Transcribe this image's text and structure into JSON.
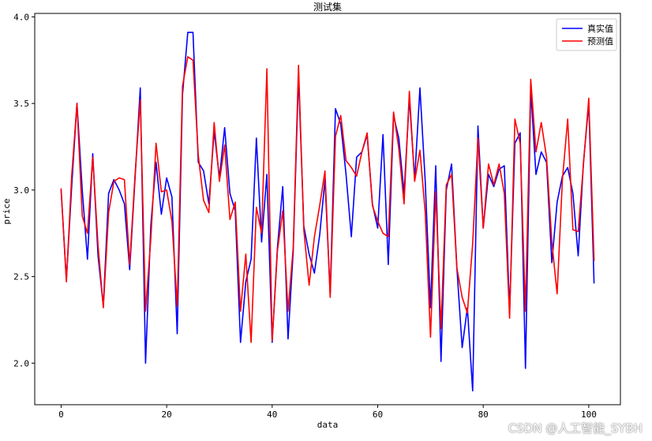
{
  "chart_data": {
    "type": "line",
    "title": "测试集",
    "xlabel": "data",
    "ylabel": "price",
    "xlim": [
      -5,
      106
    ],
    "ylim": [
      1.76,
      4.02
    ],
    "xticks": [
      0,
      20,
      40,
      60,
      80,
      100
    ],
    "yticks": [
      2.0,
      2.5,
      3.0,
      3.5,
      4.0
    ],
    "ytick_labels": [
      "2.0",
      "2.5",
      "3.0",
      "3.5",
      "4.0"
    ],
    "grid": false,
    "legend_position": "top-right",
    "x": [
      0,
      1,
      2,
      3,
      4,
      5,
      6,
      7,
      8,
      9,
      10,
      11,
      12,
      13,
      14,
      15,
      16,
      17,
      18,
      19,
      20,
      21,
      22,
      23,
      24,
      25,
      26,
      27,
      28,
      29,
      30,
      31,
      32,
      33,
      34,
      35,
      36,
      37,
      38,
      39,
      40,
      41,
      42,
      43,
      44,
      45,
      46,
      47,
      48,
      49,
      50,
      51,
      52,
      53,
      54,
      55,
      56,
      57,
      58,
      59,
      60,
      61,
      62,
      63,
      64,
      65,
      66,
      67,
      68,
      69,
      70,
      71,
      72,
      73,
      74,
      75,
      76,
      77,
      78,
      79,
      80,
      81,
      82,
      83,
      84,
      85,
      86,
      87,
      88,
      89,
      90,
      91,
      92,
      93,
      94,
      95,
      96,
      97,
      98,
      99,
      100,
      101
    ],
    "series": [
      {
        "name": "真实值",
        "color": "#0000ff",
        "values": [
          3.0,
          2.48,
          3.02,
          3.5,
          3.0,
          2.6,
          3.21,
          2.62,
          2.33,
          2.98,
          3.06,
          3.0,
          2.92,
          2.54,
          3.06,
          3.59,
          2.0,
          2.8,
          3.16,
          2.86,
          3.07,
          2.96,
          2.17,
          3.55,
          3.91,
          3.91,
          3.16,
          3.11,
          2.92,
          3.34,
          3.07,
          3.36,
          2.98,
          2.88,
          2.12,
          2.47,
          2.6,
          3.3,
          2.7,
          3.09,
          2.12,
          2.67,
          3.02,
          2.14,
          2.65,
          3.66,
          2.79,
          2.63,
          2.52,
          2.74,
          3.06,
          2.4,
          3.47,
          3.38,
          3.09,
          2.73,
          3.19,
          3.22,
          3.32,
          2.92,
          2.78,
          3.32,
          2.57,
          3.43,
          3.3,
          2.98,
          3.53,
          3.06,
          3.59,
          3.05,
          2.32,
          3.14,
          2.01,
          3.0,
          3.15,
          2.55,
          2.09,
          2.32,
          1.84,
          3.37,
          2.78,
          3.09,
          3.02,
          3.12,
          3.14,
          2.3,
          3.27,
          3.33,
          1.97,
          3.58,
          3.09,
          3.22,
          3.16,
          2.58,
          2.93,
          3.08,
          3.13,
          2.98,
          2.62,
          3.16,
          3.5,
          2.46
        ]
      },
      {
        "name": "预测值",
        "color": "#ff0000",
        "values": [
          3.01,
          2.47,
          3.08,
          3.5,
          2.85,
          2.75,
          3.19,
          2.68,
          2.32,
          2.87,
          3.05,
          3.07,
          3.06,
          2.57,
          3.08,
          3.52,
          2.3,
          2.72,
          3.27,
          2.99,
          3.0,
          2.82,
          2.33,
          3.6,
          3.77,
          3.75,
          3.2,
          2.94,
          2.87,
          3.39,
          3.05,
          3.26,
          2.83,
          2.93,
          2.3,
          2.63,
          2.12,
          2.9,
          2.75,
          3.7,
          2.13,
          2.65,
          2.88,
          2.3,
          2.67,
          3.72,
          2.77,
          2.45,
          2.73,
          2.91,
          3.11,
          2.38,
          3.31,
          3.43,
          3.17,
          3.13,
          3.08,
          3.22,
          3.33,
          2.91,
          2.82,
          2.75,
          2.73,
          3.45,
          3.24,
          2.92,
          3.57,
          3.05,
          3.23,
          2.87,
          2.15,
          2.99,
          2.2,
          3.03,
          3.09,
          2.55,
          2.38,
          2.29,
          2.69,
          3.3,
          2.78,
          3.15,
          3.03,
          3.15,
          2.98,
          2.26,
          3.41,
          3.27,
          2.3,
          3.64,
          3.22,
          3.39,
          3.19,
          2.7,
          2.4,
          3.06,
          3.41,
          2.77,
          2.76,
          3.15,
          3.53,
          2.59
        ]
      }
    ]
  },
  "watermark": "CSDN @人工智能_SYBH"
}
